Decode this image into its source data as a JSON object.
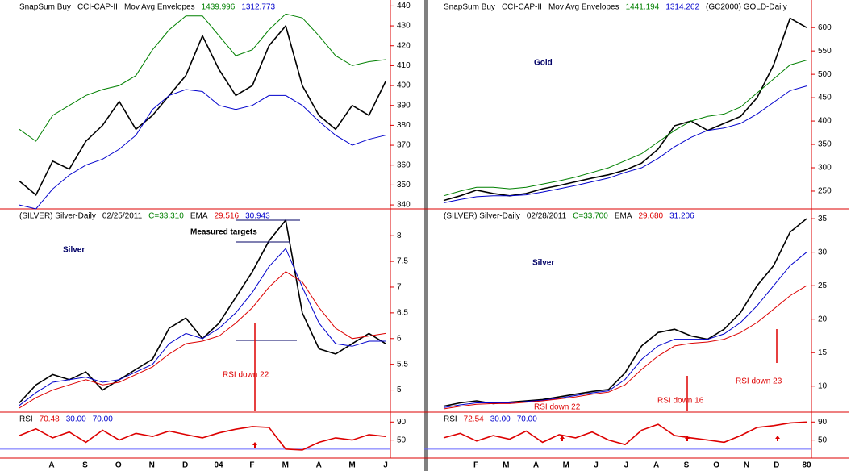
{
  "chart_data": [
    {
      "type": "line",
      "header": [
        {
          "text": "SnapSum Buy",
          "color": "#000"
        },
        {
          "text": "CCI-CAP-II",
          "color": "#000"
        },
        {
          "text": "Mov Avg Envelopes",
          "color": "#000"
        },
        {
          "text": "1439.996",
          "color": "#008000"
        },
        {
          "text": "1312.773",
          "color": "#0000cc"
        }
      ],
      "ylim": [
        338,
        443
      ],
      "yticks": [
        340,
        350,
        360,
        370,
        380,
        390,
        400,
        410,
        420,
        430,
        440
      ],
      "series": [
        {
          "color": "#000000",
          "values": [
            352,
            345,
            362,
            358,
            372,
            380,
            392,
            378,
            385,
            395,
            405,
            425,
            408,
            395,
            400,
            420,
            430,
            400,
            385,
            378,
            390,
            385,
            402
          ]
        },
        {
          "color": "#008000",
          "values": [
            378,
            372,
            385,
            390,
            395,
            398,
            400,
            405,
            418,
            428,
            435,
            435,
            425,
            415,
            418,
            428,
            436,
            434,
            425,
            415,
            410,
            412,
            413
          ]
        },
        {
          "color": "#0000cc",
          "values": [
            340,
            338,
            348,
            355,
            360,
            363,
            368,
            375,
            388,
            395,
            398,
            397,
            390,
            388,
            390,
            395,
            395,
            390,
            382,
            375,
            370,
            373,
            375
          ]
        }
      ],
      "annotations": []
    },
    {
      "type": "line",
      "header": [
        {
          "text": "(SILVER) Silver-Daily",
          "color": "#000"
        },
        {
          "text": "02/25/2011",
          "color": "#000"
        },
        {
          "text": "C=33.310",
          "color": "#008000"
        },
        {
          "text": "EMA",
          "color": "#000"
        },
        {
          "text": "29.516",
          "color": "#dd0000"
        },
        {
          "text": "30.943",
          "color": "#0000cc"
        }
      ],
      "ylim": [
        4.57,
        8.52
      ],
      "yticks": [
        5,
        5.5,
        6,
        6.5,
        7,
        7.5,
        8
      ],
      "series": [
        {
          "color": "#000000",
          "values": [
            4.75,
            5.1,
            5.3,
            5.2,
            5.35,
            5.0,
            5.2,
            5.4,
            5.6,
            6.2,
            6.4,
            6.0,
            6.3,
            6.8,
            7.3,
            7.9,
            8.3,
            6.5,
            5.8,
            5.7,
            5.9,
            6.1,
            5.9
          ]
        },
        {
          "color": "#0000cc",
          "values": [
            4.7,
            4.95,
            5.15,
            5.2,
            5.25,
            5.15,
            5.2,
            5.35,
            5.5,
            5.9,
            6.1,
            6.0,
            6.2,
            6.5,
            6.9,
            7.4,
            7.75,
            7.0,
            6.3,
            5.9,
            5.85,
            5.95,
            5.95
          ]
        },
        {
          "color": "#dd0000",
          "values": [
            4.65,
            4.85,
            5.0,
            5.1,
            5.2,
            5.1,
            5.15,
            5.3,
            5.45,
            5.7,
            5.9,
            5.95,
            6.05,
            6.3,
            6.6,
            7.0,
            7.3,
            7.1,
            6.6,
            6.2,
            6.0,
            6.05,
            6.1
          ]
        }
      ],
      "annotations": [
        {
          "text": "Silver",
          "color": "#000066"
        },
        {
          "text": "Measured targets",
          "color": "#000000"
        },
        {
          "text": "RSI down 22",
          "color": "#dd0000"
        }
      ]
    },
    {
      "type": "line",
      "header": [
        {
          "text": "RSI",
          "color": "#000"
        },
        {
          "text": "70.48",
          "color": "#dd0000"
        },
        {
          "text": "30.00",
          "color": "#0000cc"
        },
        {
          "text": "70.00",
          "color": "#0000cc"
        }
      ],
      "ylim": [
        10,
        112
      ],
      "yticks": [
        50,
        90
      ],
      "levels": [
        30,
        70
      ],
      "level_color": "#6666ff",
      "series": [
        {
          "color": "#dd0000",
          "values": [
            60,
            75,
            55,
            68,
            45,
            72,
            50,
            65,
            58,
            70,
            62,
            55,
            66,
            74,
            80,
            78,
            30,
            28,
            45,
            55,
            50,
            62,
            58
          ]
        }
      ],
      "x_labels": [
        "A",
        "S",
        "O",
        "N",
        "D",
        "04",
        "F",
        "M",
        "A",
        "M",
        "J"
      ],
      "annotations": []
    },
    {
      "type": "line",
      "header": [
        {
          "text": "SnapSum Buy",
          "color": "#000"
        },
        {
          "text": "CCI-CAP-II",
          "color": "#000"
        },
        {
          "text": "Mov Avg Envelopes",
          "color": "#000"
        },
        {
          "text": "1441.194",
          "color": "#008000"
        },
        {
          "text": "1314.262",
          "color": "#0000cc"
        },
        {
          "text": "(GC2000) GOLD-Daily",
          "color": "#000"
        }
      ],
      "ylim": [
        212,
        659
      ],
      "yticks": [
        250,
        300,
        350,
        400,
        450,
        500,
        550,
        600
      ],
      "series": [
        {
          "color": "#000000",
          "values": [
            230,
            240,
            252,
            245,
            240,
            245,
            255,
            262,
            270,
            278,
            285,
            295,
            310,
            340,
            390,
            400,
            380,
            395,
            410,
            450,
            520,
            620,
            600
          ]
        },
        {
          "color": "#008000",
          "values": [
            240,
            250,
            258,
            258,
            255,
            258,
            265,
            272,
            280,
            290,
            300,
            315,
            330,
            355,
            380,
            400,
            410,
            415,
            430,
            460,
            490,
            520,
            530
          ]
        },
        {
          "color": "#0000cc",
          "values": [
            225,
            232,
            238,
            240,
            240,
            242,
            248,
            255,
            262,
            270,
            278,
            290,
            300,
            320,
            345,
            365,
            380,
            385,
            395,
            415,
            440,
            465,
            475
          ]
        }
      ],
      "annotations": [
        {
          "text": "Gold",
          "color": "#000066"
        }
      ]
    },
    {
      "type": "line",
      "header": [
        {
          "text": "(SILVER) Silver-Daily",
          "color": "#000"
        },
        {
          "text": "02/28/2011",
          "color": "#000"
        },
        {
          "text": "C=33.700",
          "color": "#008000"
        },
        {
          "text": "EMA",
          "color": "#000"
        },
        {
          "text": "29.680",
          "color": "#dd0000"
        },
        {
          "text": "31.206",
          "color": "#0000cc"
        }
      ],
      "ylim": [
        6.12,
        36.46
      ],
      "yticks": [
        10,
        15,
        20,
        25,
        30,
        35
      ],
      "series": [
        {
          "color": "#000000",
          "values": [
            7,
            7.5,
            7.8,
            7.4,
            7.6,
            7.8,
            8.0,
            8.4,
            8.8,
            9.2,
            9.5,
            12,
            16,
            18,
            18.5,
            17.5,
            17,
            18.5,
            21,
            25,
            28,
            33,
            35
          ]
        },
        {
          "color": "#0000cc",
          "values": [
            6.8,
            7.2,
            7.5,
            7.5,
            7.5,
            7.7,
            7.9,
            8.2,
            8.6,
            9.0,
            9.3,
            11,
            14,
            16,
            17,
            17,
            17,
            17.8,
            19.5,
            22,
            25,
            28,
            30
          ]
        },
        {
          "color": "#dd0000",
          "values": [
            6.6,
            7,
            7.3,
            7.4,
            7.4,
            7.6,
            7.8,
            8.1,
            8.4,
            8.8,
            9.1,
            10.2,
            12.5,
            14.5,
            16,
            16.4,
            16.6,
            17,
            18,
            19.5,
            21.5,
            23.5,
            25
          ]
        }
      ],
      "annotations": [
        {
          "text": "Silver",
          "color": "#000066"
        },
        {
          "text": "RSI down 22",
          "color": "#dd0000"
        },
        {
          "text": "RSI down 16",
          "color": "#dd0000"
        },
        {
          "text": "RSI down 23",
          "color": "#dd0000"
        }
      ]
    },
    {
      "type": "line",
      "header": [
        {
          "text": "RSI",
          "color": "#000"
        },
        {
          "text": "72.54",
          "color": "#dd0000"
        },
        {
          "text": "30.00",
          "color": "#0000cc"
        },
        {
          "text": "70.00",
          "color": "#0000cc"
        }
      ],
      "ylim": [
        10,
        112
      ],
      "yticks": [
        50,
        90
      ],
      "levels": [
        30,
        70
      ],
      "level_color": "#6666ff",
      "series": [
        {
          "color": "#dd0000",
          "values": [
            55,
            65,
            48,
            60,
            52,
            70,
            45,
            62,
            55,
            68,
            50,
            40,
            72,
            85,
            60,
            55,
            50,
            45,
            60,
            78,
            82,
            88,
            90
          ]
        }
      ],
      "x_labels": [
        "F",
        "M",
        "A",
        "M",
        "J",
        "J",
        "A",
        "S",
        "O",
        "N",
        "D",
        "80"
      ],
      "annotations": []
    }
  ]
}
